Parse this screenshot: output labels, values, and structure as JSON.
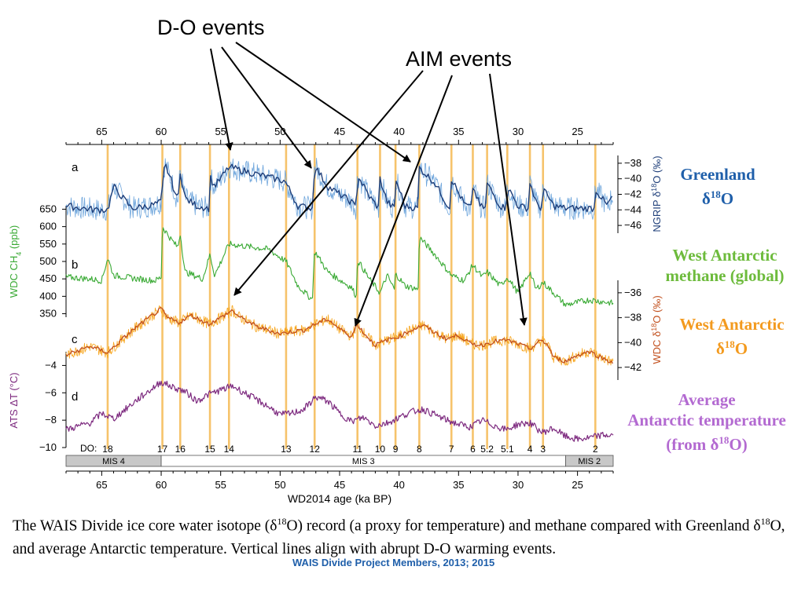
{
  "annotations": {
    "do_title": "D-O events",
    "aim_title": "AIM events"
  },
  "side_labels": {
    "greenland": {
      "line1": "Greenland",
      "line2_pre": "δ",
      "line2_sup": "18",
      "line2_post": "O",
      "color": "#1f5faa"
    },
    "methane": {
      "line1": "West Antarctic",
      "line2": "methane (global)",
      "color": "#6dbb3c"
    },
    "wdc_o18": {
      "line1": "West Antarctic",
      "line2_pre": "δ",
      "line2_sup": "18",
      "line2_post": "O",
      "color": "#f39a1e"
    },
    "ats": {
      "line1": "Average",
      "line2": "Antarctic temperature",
      "line3_pre": "(from δ",
      "line3_sup": "18",
      "line3_post": "O)",
      "color": "#b36ad1"
    }
  },
  "caption": {
    "text_1": "The WAIS Divide ice core water isotope (δ",
    "sup_1": "18",
    "text_2": "O) record (a proxy for temperature)  and methane compared with Greenland δ",
    "sup_2": "18",
    "text_3": "O, and average Antarctic temperature. Vertical lines align with abrupt D-O warming events."
  },
  "credit": "WAIS Divide Project Members, 2013; 2015",
  "colors": {
    "ngrip_light": "#6fa6dc",
    "ngrip_dark": "#1f3f7a",
    "methane": "#3aaa35",
    "wdc_light": "#f7a51c",
    "wdc_dark": "#c2501e",
    "ats": "#7d2a7f",
    "event_line": "#f6c36b",
    "mis_fill": "#c8c8c8"
  },
  "chart_data": {
    "type": "line",
    "xlabel": "WD2014 age (ka BP)",
    "x_range": [
      68,
      22
    ],
    "x_ticks": [
      65,
      60,
      55,
      50,
      45,
      40,
      35,
      30,
      25
    ],
    "panel_letters": [
      "a",
      "b",
      "c",
      "d"
    ],
    "axes": {
      "ngrip": {
        "label": "NGRIP  δ",
        "label_sup": "18",
        "label_post": "O (‰)",
        "ticks": [
          -38,
          -40,
          -42,
          -44,
          -46
        ],
        "range": [
          -47,
          -37
        ]
      },
      "methane": {
        "label": "WDC CH",
        "label_sub": "4",
        "label_post": " (ppb)",
        "ticks": [
          650,
          600,
          550,
          500,
          450,
          400,
          350
        ],
        "range": [
          340,
          660
        ]
      },
      "wdc": {
        "label": "WDC  δ",
        "label_sup": "18",
        "label_post": "O (‰)",
        "ticks": [
          -36,
          -38,
          -40,
          -42
        ],
        "range": [
          -43,
          -35
        ]
      },
      "ats": {
        "label": "ATS  ΔT (°C)",
        "ticks": [
          -4,
          -6,
          -8,
          -10
        ],
        "range": [
          -10,
          -3
        ]
      }
    },
    "do_events": [
      {
        "label": "18",
        "age": 64.5
      },
      {
        "label": "17",
        "age": 59.9
      },
      {
        "label": "16",
        "age": 58.4
      },
      {
        "label": "15",
        "age": 55.9
      },
      {
        "label": "14",
        "age": 54.3
      },
      {
        "label": "13",
        "age": 49.5
      },
      {
        "label": "12",
        "age": 47.1
      },
      {
        "label": "11",
        "age": 43.5
      },
      {
        "label": "10",
        "age": 41.6
      },
      {
        "label": "9",
        "age": 40.3
      },
      {
        "label": "8",
        "age": 38.3
      },
      {
        "label": "7",
        "age": 35.6
      },
      {
        "label": "6",
        "age": 33.8
      },
      {
        "label": "5.2",
        "age": 32.6
      },
      {
        "label": "5.1",
        "age": 30.9
      },
      {
        "label": "4",
        "age": 29.0
      },
      {
        "label": "3",
        "age": 27.9
      },
      {
        "label": "2",
        "age": 23.5
      }
    ],
    "do_prefix": "DO:",
    "mis": [
      {
        "label": "MIS 4",
        "from": 68,
        "to": 60,
        "filled": true
      },
      {
        "label": "MIS 3",
        "from": 60,
        "to": 26,
        "filled": false
      },
      {
        "label": "MIS 2",
        "from": 26,
        "to": 22,
        "filled": true
      }
    ],
    "series": [
      {
        "name": "NGRIP δ18O",
        "key": "ngrip",
        "ages": [
          68,
          66.5,
          65.5,
          64.5,
          64,
          62.5,
          61,
          60,
          59.7,
          59.2,
          58.6,
          58.4,
          58,
          57,
          56,
          55.9,
          55.5,
          54.3,
          53,
          51,
          49.6,
          49.5,
          48.5,
          47.3,
          47.1,
          46,
          44,
          43.6,
          43.5,
          42.5,
          41.7,
          41.6,
          41,
          40.4,
          40.3,
          39.5,
          38.4,
          38.3,
          37,
          36,
          35.7,
          35.6,
          34.5,
          33.9,
          33.8,
          33.2,
          32.7,
          32.6,
          31.5,
          31,
          30.9,
          30,
          29.1,
          29.0,
          28.4,
          28,
          27.9,
          27,
          26,
          24.5,
          23.6,
          23.5,
          22.5,
          22
        ],
        "values": [
          -43.5,
          -43.8,
          -44,
          -44,
          -41,
          -43.8,
          -43.5,
          -43,
          -38,
          -40,
          -43,
          -39,
          -42.5,
          -43.5,
          -43.8,
          -39.8,
          -41,
          -38.5,
          -39,
          -39.8,
          -40.3,
          -40.6,
          -43.5,
          -43.8,
          -38.3,
          -41,
          -43,
          -43.8,
          -39.5,
          -42.3,
          -43.8,
          -40,
          -43,
          -43.8,
          -40,
          -43.5,
          -43.8,
          -38.6,
          -40.5,
          -43.2,
          -43.8,
          -40,
          -43.3,
          -43.8,
          -41,
          -43.5,
          -43.8,
          -40.6,
          -43.5,
          -43.8,
          -41,
          -43.5,
          -43.8,
          -40.5,
          -43.4,
          -43.8,
          -41.3,
          -43.5,
          -43.8,
          -43.8,
          -43.8,
          -41.3,
          -43.5,
          -42
        ]
      },
      {
        "name": "WDC CH4",
        "key": "methane",
        "ages": [
          68,
          66,
          65,
          64.5,
          64,
          62,
          60.5,
          60,
          59.9,
          59.2,
          58.6,
          58.4,
          58,
          56.5,
          55.9,
          55.5,
          54.3,
          51,
          49.5,
          48.5,
          47.3,
          47.1,
          46,
          44,
          43.6,
          43.5,
          42.5,
          41.6,
          41,
          40.4,
          40.3,
          39.5,
          38.4,
          38.3,
          37,
          35.6,
          34.5,
          33.8,
          33,
          32.6,
          31.5,
          30.9,
          30,
          29.0,
          28.5,
          27.9,
          26,
          24,
          22
        ],
        "values": [
          455,
          450,
          445,
          510,
          460,
          450,
          445,
          455,
          600,
          565,
          540,
          580,
          470,
          450,
          520,
          460,
          550,
          535,
          500,
          430,
          390,
          530,
          470,
          425,
          400,
          505,
          450,
          410,
          460,
          420,
          465,
          430,
          420,
          570,
          520,
          460,
          445,
          490,
          455,
          470,
          430,
          455,
          410,
          470,
          420,
          440,
          375,
          390,
          380
        ]
      },
      {
        "name": "WDC δ18O",
        "key": "wdc",
        "ages": [
          68,
          66,
          64.5,
          63,
          62,
          60,
          59.5,
          58.5,
          57.5,
          56,
          55,
          54,
          53.5,
          52,
          50,
          49,
          48,
          47,
          46,
          45,
          44,
          43.5,
          43,
          42,
          41,
          40,
          39,
          38,
          37,
          36,
          35,
          34,
          33,
          32,
          31,
          30,
          29,
          28,
          27.5,
          27,
          26,
          25,
          24,
          23,
          22
        ],
        "values": [
          -41,
          -40.3,
          -40.8,
          -39.5,
          -38.7,
          -37.3,
          -38,
          -38.4,
          -37.8,
          -38.5,
          -38,
          -37.4,
          -37.9,
          -38.7,
          -39.3,
          -39.1,
          -39,
          -38.5,
          -38.1,
          -38.9,
          -39.5,
          -38.5,
          -39.2,
          -40.2,
          -39.8,
          -39.5,
          -39,
          -38.6,
          -39.2,
          -39.7,
          -39.4,
          -40.1,
          -40.2,
          -39.9,
          -39.8,
          -40.1,
          -40.5,
          -39.8,
          -40.2,
          -41.2,
          -41.5,
          -41,
          -40.7,
          -41.2,
          -41.6
        ]
      },
      {
        "name": "ATS ΔT",
        "key": "ats",
        "ages": [
          68,
          66,
          65,
          64,
          62,
          60,
          59,
          58,
          57,
          56,
          55,
          54,
          53,
          52,
          51,
          50,
          49,
          48,
          47,
          46,
          45,
          44,
          43,
          42,
          41,
          40,
          39,
          38,
          37,
          36,
          35,
          34,
          33,
          32,
          31,
          30,
          29,
          28,
          27,
          26,
          25,
          24,
          23,
          22
        ],
        "values": [
          -8.7,
          -8.2,
          -7.5,
          -7.9,
          -6.5,
          -5.2,
          -5.6,
          -5.9,
          -6.6,
          -6.1,
          -5.8,
          -5.5,
          -6,
          -6.5,
          -7,
          -7.6,
          -7.5,
          -7.2,
          -6.3,
          -6.6,
          -7.5,
          -8.1,
          -7.8,
          -8.4,
          -8.2,
          -7.8,
          -7.4,
          -7.2,
          -7.6,
          -8,
          -8.3,
          -8.5,
          -8,
          -8.4,
          -8.7,
          -8.3,
          -8.2,
          -8.9,
          -8.6,
          -9.2,
          -9.4,
          -9.3,
          -9.1,
          -9.1
        ]
      }
    ]
  }
}
